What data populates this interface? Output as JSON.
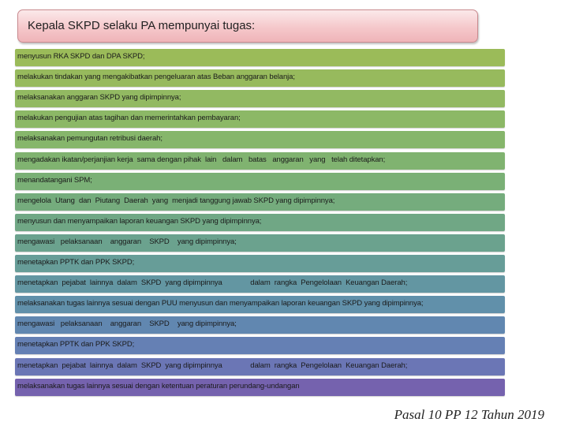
{
  "title": "Kepala SKPD selaku PA mempunyai tugas:",
  "items": [
    {
      "text": "menyusun RKA SKPD dan DPA SKPD;",
      "color": "#9bbb59"
    },
    {
      "text": "melakukan tindakan yang mengakibatkan pengeluaran atas Beban anggaran belanja;",
      "color": "#97ba5d"
    },
    {
      "text": "melaksanakan anggaran SKPD yang dipimpinnya;",
      "color": "#92b962"
    },
    {
      "text": "melakukan pengujian atas tagihan dan memerintahkan pembayaran;",
      "color": "#8cb866"
    },
    {
      "text": "melaksanakan pemungutan retribusi daerah;",
      "color": "#86b66b"
    },
    {
      "text": "mengadakan ikatan/perjanjian kerja  sama dengan pihak  lain   dalam   batas   anggaran   yang   telah ditetapkan;",
      "color": "#80b370"
    },
    {
      "text": "menandatangani SPM;",
      "color": "#7ab076"
    },
    {
      "text": "mengelola  Utang  dan  Piutang  Daerah  yang  menjadi tanggung jawab SKPD yang dipimpinnya;",
      "color": "#75ac7d"
    },
    {
      "text": "menyusun dan menyampaikan laporan keuangan SKPD yang dipimpinnya;",
      "color": "#70a785"
    },
    {
      "text": "mengawasi   pelaksanaan    anggaran    SKPD    yang dipimpinnya;",
      "color": "#6ba28e"
    },
    {
      "text": "menetapkan PPTK dan PPK SKPD;",
      "color": "#679d98"
    },
    {
      "text": "menetapkan  pejabat  lainnya  dalam  SKPD  yang dipimpinnya              dalam  rangka  Pengelolaan  Keuangan Daerah;",
      "color": "#6396a2"
    },
    {
      "text": "melaksanakan tugas lainnya sesuai dengan PUU menyusun dan menyampaikan laporan keuangan SKPD yang dipimpinnya;",
      "color": "#6190aa"
    },
    {
      "text": "mengawasi   pelaksanaan    anggaran    SKPD    yang dipimpinnya;",
      "color": "#6187b0"
    },
    {
      "text": "menetapkan PPTK dan PPK SKPD;",
      "color": "#6580b4"
    },
    {
      "text": "menetapkan  pejabat  lainnya  dalam  SKPD  yang dipimpinnya              dalam  rangka  Pengelolaan  Keuangan Daerah;",
      "color": "#6b76b5"
    },
    {
      "text": "melaksanakan tugas lainnya sesuai dengan ketentuan peraturan perundang-undangan",
      "color": "#7562ae"
    }
  ],
  "footer": "Pasal 10 PP 12  Tahun 2019"
}
